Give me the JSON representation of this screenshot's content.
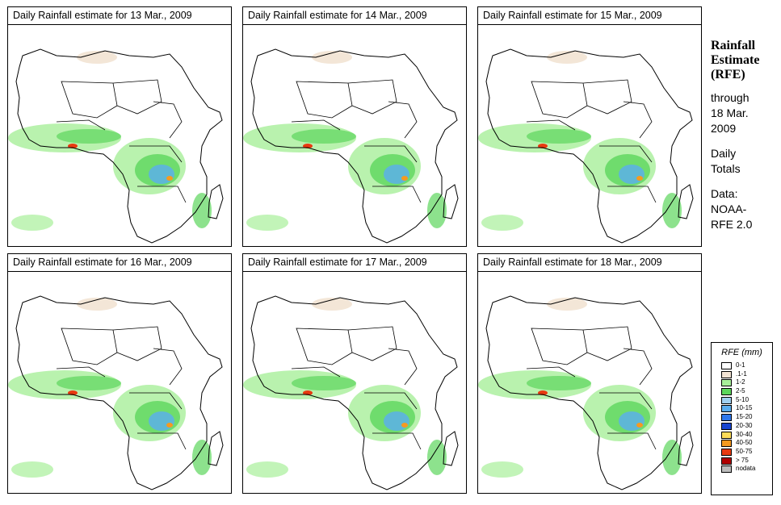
{
  "panels": [
    {
      "title": "Daily Rainfall estimate for  13 Mar., 2009"
    },
    {
      "title": "Daily Rainfall estimate for  14 Mar., 2009"
    },
    {
      "title": "Daily Rainfall estimate for  15 Mar., 2009"
    },
    {
      "title": "Daily Rainfall estimate for  16 Mar., 2009"
    },
    {
      "title": "Daily Rainfall estimate for  17 Mar., 2009"
    },
    {
      "title": "Daily Rainfall estimate for  18 Mar., 2009"
    }
  ],
  "side": {
    "title_line1": "Rainfall",
    "title_line2": "Estimate",
    "title_line3": "(RFE)",
    "through_label": "through",
    "through_date_line1": "18 Mar.",
    "through_date_line2": "2009",
    "totals_line1": "Daily",
    "totals_line2": "Totals",
    "data_label": "Data:",
    "data_source_line1": "NOAA-",
    "data_source_line2": "RFE 2.0"
  },
  "legend": {
    "title": "RFE (mm)",
    "items": [
      {
        "label": "0-1",
        "color": "#ffffff"
      },
      {
        "label": ".1-1",
        "color": "#f2e3d3"
      },
      {
        "label": "1-2",
        "color": "#a8ef9a"
      },
      {
        "label": "2-5",
        "color": "#5cd65c"
      },
      {
        "label": "5-10",
        "color": "#9fd0f0"
      },
      {
        "label": "10-15",
        "color": "#5aaef0"
      },
      {
        "label": "15-20",
        "color": "#2f78ec"
      },
      {
        "label": "20-30",
        "color": "#1845d0"
      },
      {
        "label": "30-40",
        "color": "#fddc5a"
      },
      {
        "label": "40-50",
        "color": "#f59a20"
      },
      {
        "label": "50-75",
        "color": "#e83a10"
      },
      {
        "label": "> 75",
        "color": "#b00000"
      },
      {
        "label": "nodata",
        "color": "#bdbdbd"
      }
    ]
  }
}
